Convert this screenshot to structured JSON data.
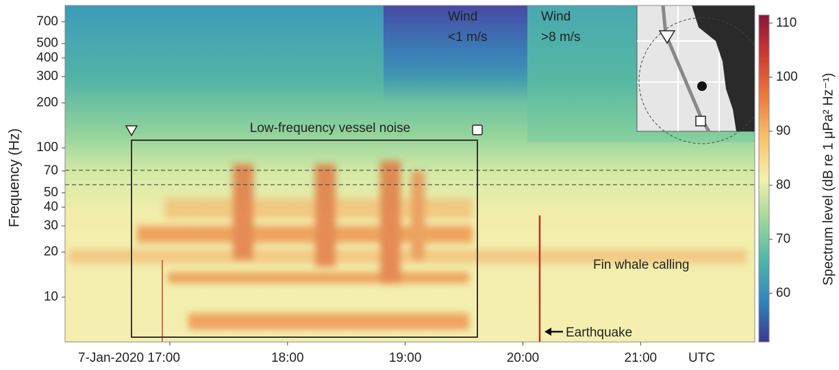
{
  "chart_data": {
    "type": "spectrogram",
    "y_label": "Frequency (Hz)",
    "x_label": "UTC",
    "xlim": [
      16.11,
      21.97
    ],
    "xticks": [
      {
        "value": 17,
        "label": "7-Jan-2020 17:00"
      },
      {
        "value": 18,
        "label": "18:00"
      },
      {
        "value": 19,
        "label": "19:00"
      },
      {
        "value": 20,
        "label": "20:00"
      },
      {
        "value": 21,
        "label": "21:00"
      }
    ],
    "ylim": [
      5,
      900
    ],
    "y_scale": "log",
    "yticks": [
      10,
      20,
      30,
      40,
      50,
      70,
      100,
      200,
      300,
      400,
      500,
      700
    ],
    "colorbar": {
      "label": "Spectrum level (dB re 1 μPa² Hz⁻¹)",
      "lim": [
        51,
        111.5
      ],
      "ticks": [
        60,
        70,
        80,
        90,
        100,
        110
      ],
      "colormap": [
        "#3b3791",
        "#2e86c1",
        "#4fb8a8",
        "#9fd89a",
        "#f4f0ac",
        "#f8c26a",
        "#ee7a3c",
        "#cf3b34",
        "#8a1538"
      ]
    },
    "annotations": [
      "Wind\n<1 m/s",
      "Wind\n>8 m/s",
      "Low-frequency vessel noise",
      "Fin whale calling",
      "Earthquake"
    ]
  }
}
